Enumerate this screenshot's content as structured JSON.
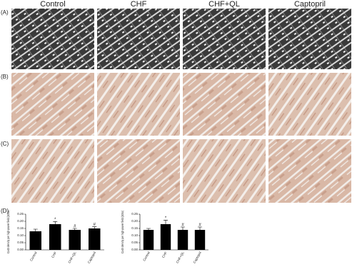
{
  "figure": {
    "column_headers": [
      "Control",
      "CHF",
      "CHF+QL",
      "Captopril"
    ],
    "row_labels": [
      "(A)",
      "(B)",
      "(C)",
      "(D)"
    ]
  },
  "chart_data": [
    {
      "type": "bar",
      "ylabel": "Cx43 density per high-power field (400x)",
      "categories": [
        "Control",
        "CHF",
        "CHF+QL",
        "Captopril"
      ],
      "values": [
        0.13,
        0.18,
        0.14,
        0.15
      ],
      "errors": [
        0.015,
        0.018,
        0.01,
        0.012
      ],
      "markers": [
        null,
        "*",
        "#",
        "#"
      ],
      "color": "#000000",
      "ylim": [
        0,
        0.25
      ],
      "yticks": [
        {
          "value": 0,
          "label": "0.00"
        },
        {
          "value": 0.05,
          "label": "0.05"
        },
        {
          "value": 0.1,
          "label": "0.10"
        },
        {
          "value": 0.15,
          "label": "0.15"
        },
        {
          "value": 0.2,
          "label": "0.20"
        },
        {
          "value": 0.25,
          "label": "0.25"
        }
      ]
    },
    {
      "type": "bar",
      "ylabel": "Cx40 density per high-power field (400x)",
      "categories": [
        "Control",
        "CHF",
        "CHF+QL",
        "Captopril"
      ],
      "values": [
        0.14,
        0.18,
        0.14,
        0.14
      ],
      "errors": [
        0.01,
        0.028,
        0.02,
        0.02
      ],
      "markers": [
        null,
        "*",
        "#",
        "#"
      ],
      "color": "#000000",
      "ylim": [
        0,
        0.25
      ],
      "yticks": [
        {
          "value": 0,
          "label": "0.00"
        },
        {
          "value": 0.05,
          "label": "0.05"
        },
        {
          "value": 0.1,
          "label": "0.10"
        },
        {
          "value": 0.15,
          "label": "0.15"
        },
        {
          "value": 0.2,
          "label": "0.20"
        },
        {
          "value": 0.25,
          "label": "0.25"
        }
      ]
    }
  ]
}
